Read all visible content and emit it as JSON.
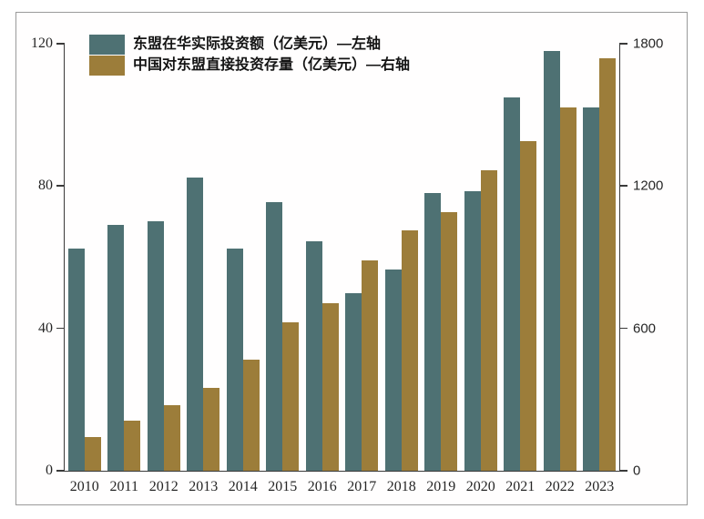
{
  "chart_data": {
    "type": "bar",
    "title": "",
    "categories": [
      "2010",
      "2011",
      "2012",
      "2013",
      "2014",
      "2015",
      "2016",
      "2017",
      "2018",
      "2019",
      "2020",
      "2021",
      "2022",
      "2023"
    ],
    "series": [
      {
        "name": "东盟在华实际投资额（亿美元）—左轴",
        "axis": "left",
        "color": "#4e7173",
        "values": [
          62.5,
          69,
          70,
          82.5,
          62.5,
          75.5,
          64.5,
          50,
          56.5,
          78,
          78.5,
          105,
          118,
          102
        ]
      },
      {
        "name": "中国对东盟直接投资存量（亿美元）—右轴",
        "axis": "right",
        "color": "#9c7d3a",
        "values": [
          142,
          212,
          278,
          350,
          470,
          627,
          705,
          885,
          1015,
          1090,
          1265,
          1390,
          1530,
          1740
        ]
      }
    ],
    "left_axis": {
      "ticks": [
        0,
        40,
        80,
        120
      ],
      "max": 120
    },
    "right_axis": {
      "ticks": [
        0,
        600,
        1200,
        1800
      ],
      "max": 1800
    },
    "legend_position": "top-left",
    "grid": false
  }
}
